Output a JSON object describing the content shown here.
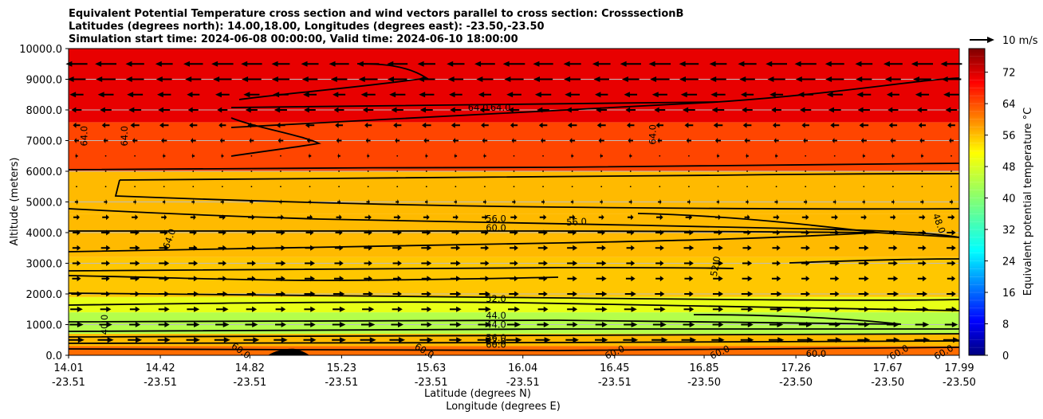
{
  "chart_data": {
    "type": "contour",
    "title_lines": [
      "Equivalent Potential Temperature cross section and wind vectors parallel to cross section: CrosssectionB",
      "Latitudes (degrees north): 14.00,18.00, Longitudes (degrees east): -23.50,-23.50",
      "Simulation start time: 2024-06-08 00:00:00, Valid time: 2024-06-10 18:00:00"
    ],
    "xlabel": "Latitude (degrees N)",
    "xlabel2": "Longitude (degrees E)",
    "ylabel": "Altitude (meters)",
    "x_ticks": [
      {
        "lat": "14.01",
        "lon": "-23.51"
      },
      {
        "lat": "14.42",
        "lon": "-23.51"
      },
      {
        "lat": "14.82",
        "lon": "-23.51"
      },
      {
        "lat": "15.23",
        "lon": "-23.51"
      },
      {
        "lat": "15.63",
        "lon": "-23.51"
      },
      {
        "lat": "16.04",
        "lon": "-23.51"
      },
      {
        "lat": "16.45",
        "lon": "-23.51"
      },
      {
        "lat": "16.85",
        "lon": "-23.50"
      },
      {
        "lat": "17.26",
        "lon": "-23.50"
      },
      {
        "lat": "17.67",
        "lon": "-23.50"
      },
      {
        "lat": "17.99",
        "lon": "-23.50"
      }
    ],
    "xlim": [
      14.01,
      17.99
    ],
    "y_ticks": [
      "0.0",
      "1000.0",
      "2000.0",
      "3000.0",
      "4000.0",
      "5000.0",
      "6000.0",
      "7000.0",
      "8000.0",
      "9000.0",
      "10000.0"
    ],
    "ylim": [
      0,
      10000
    ],
    "gridlines_y": [
      9000,
      8000,
      7000,
      6000,
      5000,
      4000,
      3000,
      2000,
      1000
    ],
    "colorbar": {
      "label": "Equivalent potential temperature $^\\circ$C",
      "display_label": "Equivalent potential temperature °C",
      "ticks": [
        "0",
        "8",
        "16",
        "24",
        "32",
        "40",
        "48",
        "56",
        "64",
        "72"
      ],
      "range": [
        0,
        78
      ]
    },
    "quiver_key": {
      "label": "10 m/s",
      "speed": 10
    },
    "theta_e_field": {
      "description": "approximate filled-contour field (°C) by altitude band",
      "bands": [
        {
          "z": [
            0,
            300
          ],
          "value": 60
        },
        {
          "z": [
            300,
            700
          ],
          "value": 54
        },
        {
          "z": [
            700,
            1400
          ],
          "value": 43
        },
        {
          "z": [
            1400,
            1900
          ],
          "value": 47
        },
        {
          "z": [
            1900,
            3200
          ],
          "value": 53
        },
        {
          "z": [
            3200,
            4600
          ],
          "value": 54
        },
        {
          "z": [
            4600,
            6000
          ],
          "value": 54
        },
        {
          "z": [
            6000,
            7600
          ],
          "value": 63
        },
        {
          "z": [
            7600,
            10000
          ],
          "value": 70
        }
      ]
    },
    "contour_labels": [
      {
        "text": "64.0",
        "lat": 14.08,
        "z": 7150,
        "rot": -90
      },
      {
        "text": "64.0",
        "lat": 14.26,
        "z": 7150,
        "rot": -90
      },
      {
        "text": "64.0",
        "lat": 15.84,
        "z": 8080,
        "rot": 0
      },
      {
        "text": "64.0",
        "lat": 15.94,
        "z": 8080,
        "rot": 0
      },
      {
        "text": "64.0",
        "lat": 16.62,
        "z": 7200,
        "rot": -90
      },
      {
        "text": "64.0",
        "lat": 14.46,
        "z": 3800,
        "rot": -70
      },
      {
        "text": "56.0",
        "lat": 15.92,
        "z": 4450,
        "rot": 0
      },
      {
        "text": "60.0",
        "lat": 15.92,
        "z": 4150,
        "rot": 0
      },
      {
        "text": "56.0",
        "lat": 16.28,
        "z": 4350,
        "rot": -3
      },
      {
        "text": "48.0",
        "lat": 17.9,
        "z": 4300,
        "rot": 70
      },
      {
        "text": "52.0",
        "lat": 16.9,
        "z": 2900,
        "rot": -80
      },
      {
        "text": "52.0",
        "lat": 15.92,
        "z": 1850,
        "rot": 0
      },
      {
        "text": "44.0",
        "lat": 15.92,
        "z": 1300,
        "rot": 0
      },
      {
        "text": "44.0",
        "lat": 15.92,
        "z": 1000,
        "rot": 0
      },
      {
        "text": "40.0",
        "lat": 14.17,
        "z": 1000,
        "rot": -90
      },
      {
        "text": "56.0",
        "lat": 15.92,
        "z": 570,
        "rot": 0
      },
      {
        "text": "52.0",
        "lat": 15.92,
        "z": 450,
        "rot": 0
      },
      {
        "text": "60.0",
        "lat": 15.92,
        "z": 350,
        "rot": 0
      },
      {
        "text": "60.0",
        "lat": 14.78,
        "z": 150,
        "rot": 35
      },
      {
        "text": "60.0",
        "lat": 15.6,
        "z": 150,
        "rot": 30
      },
      {
        "text": "60.0",
        "lat": 16.45,
        "z": 100,
        "rot": -25
      },
      {
        "text": "60.0",
        "lat": 16.92,
        "z": 100,
        "rot": -25
      },
      {
        "text": "60.0",
        "lat": 17.35,
        "z": 50,
        "rot": 0
      },
      {
        "text": "60.0",
        "lat": 17.72,
        "z": 100,
        "rot": -30
      },
      {
        "text": "60.0",
        "lat": 17.92,
        "z": 100,
        "rot": -30
      }
    ],
    "wind_profile": [
      {
        "z": 9500,
        "u": -9.5
      },
      {
        "z": 9000,
        "u": -8.5
      },
      {
        "z": 8500,
        "u": -7
      },
      {
        "z": 8000,
        "u": -5.5
      },
      {
        "z": 7500,
        "u": -4
      },
      {
        "z": 7000,
        "u": -2.5
      },
      {
        "z": 6500,
        "u": -1.2
      },
      {
        "z": 6000,
        "u": -0.4
      },
      {
        "z": 5500,
        "u": 0.5
      },
      {
        "z": 5000,
        "u": 1.5
      },
      {
        "z": 4500,
        "u": 3
      },
      {
        "z": 4000,
        "u": 4
      },
      {
        "z": 3500,
        "u": 4.5
      },
      {
        "z": 3000,
        "u": 4.5
      },
      {
        "z": 2500,
        "u": 4.5
      },
      {
        "z": 2000,
        "u": 5
      },
      {
        "z": 1500,
        "u": 5.5
      },
      {
        "z": 1000,
        "u": 6
      },
      {
        "z": 500,
        "u": 7
      }
    ]
  }
}
